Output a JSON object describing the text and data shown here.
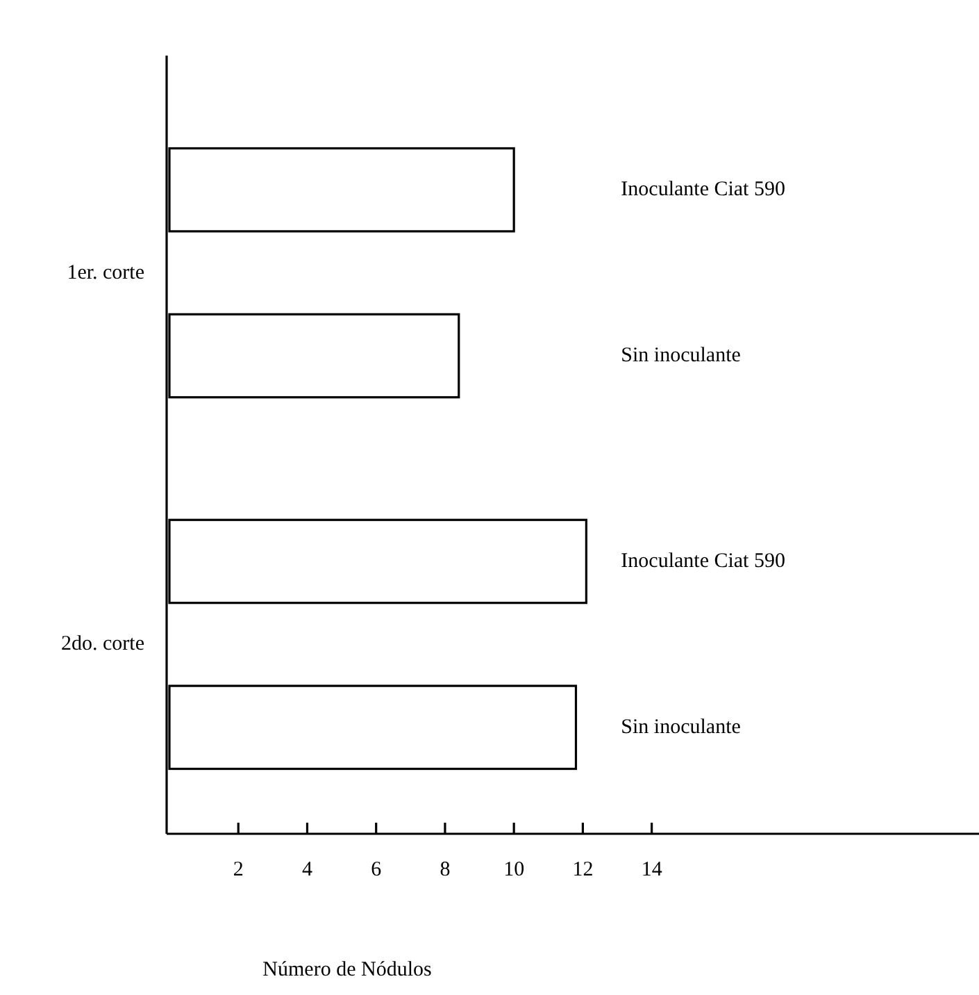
{
  "chart_data": {
    "type": "bar",
    "orientation": "horizontal",
    "xlabel": "Número de Nódulos",
    "categories": [
      "1er. corte",
      "2do. corte"
    ],
    "series": [
      {
        "name": "Inoculante Ciat 590",
        "color": "#ffffff",
        "values": [
          10,
          12.1
        ]
      },
      {
        "name": "Sin inoculante",
        "color": "#ffffff",
        "values": [
          8.4,
          11.8
        ]
      }
    ],
    "xlim": [
      0,
      23.5
    ],
    "xticks": [
      2,
      4,
      6,
      8,
      10,
      12,
      14
    ],
    "grid": false
  }
}
